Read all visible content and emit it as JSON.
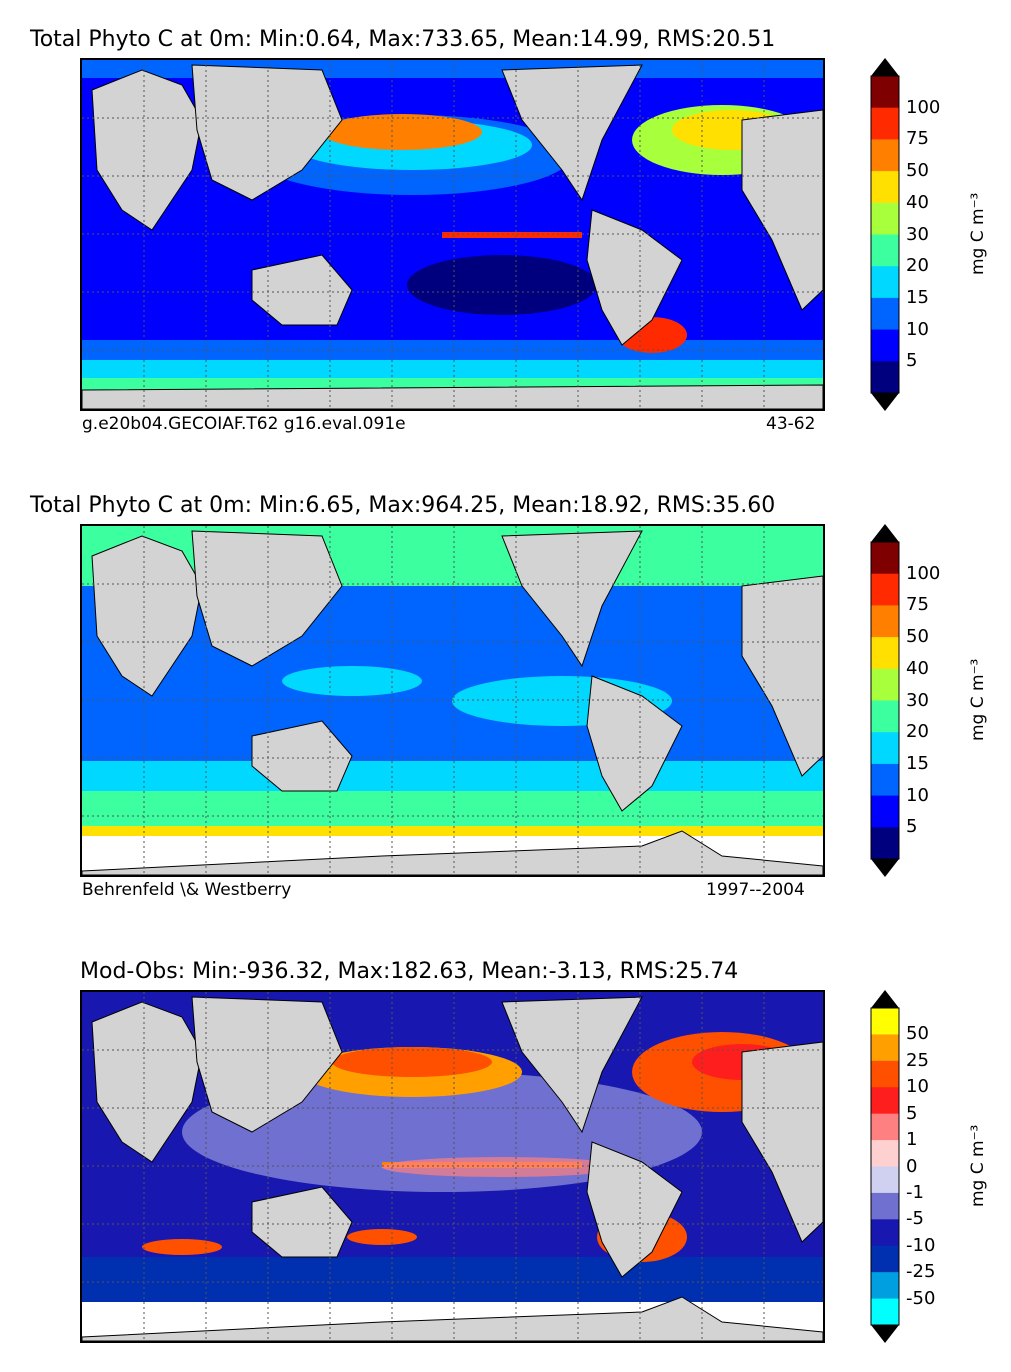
{
  "panels": [
    {
      "title": "Total Phyto C at 0m: Min:0.64, Max:733.65, Mean:14.99, RMS:20.51",
      "note_left": "g.e20b04.GECOIAF.T62 g16.eval.091e",
      "note_right": "43-62",
      "colorbar": {
        "unit": "mg C m⁻³",
        "tick_labels": [
          "100",
          "75",
          "50",
          "40",
          "30",
          "20",
          "15",
          "10",
          "5"
        ],
        "colors": [
          "#7f0000",
          "#ff2a00",
          "#ff8000",
          "#ffe000",
          "#a8ff3c",
          "#3cffa0",
          "#00d8ff",
          "#0064ff",
          "#0000ff",
          "#00007f"
        ],
        "extend_top_color": "#000000",
        "extend_bottom_color": "#000000"
      }
    },
    {
      "title": "Total Phyto C at 0m: Min:6.65, Max:964.25, Mean:18.92, RMS:35.60",
      "note_left": "Behrenfeld \\& Westberry",
      "note_right": "1997--2004",
      "colorbar": {
        "unit": "mg C m⁻³",
        "tick_labels": [
          "100",
          "75",
          "50",
          "40",
          "30",
          "20",
          "15",
          "10",
          "5"
        ],
        "colors": [
          "#7f0000",
          "#ff2a00",
          "#ff8000",
          "#ffe000",
          "#a8ff3c",
          "#3cffa0",
          "#00d8ff",
          "#0064ff",
          "#0000ff",
          "#00007f"
        ],
        "extend_top_color": "#000000",
        "extend_bottom_color": "#000000"
      }
    },
    {
      "title": "Mod-Obs: Min:-936.32, Max:182.63, Mean:-3.13, RMS:25.74",
      "note_left": "",
      "note_right": "",
      "colorbar": {
        "unit": "mg C m⁻³",
        "tick_labels": [
          "50",
          "25",
          "10",
          "5",
          "1",
          "0",
          "-1",
          "-5",
          "-10",
          "-25",
          "-50"
        ],
        "colors": [
          "#ffff00",
          "#ffa000",
          "#ff5000",
          "#ff1e1e",
          "#ff8080",
          "#ffd0d0",
          "#d0d0f0",
          "#7070d0",
          "#1818b0",
          "#0030b0",
          "#00a0e0",
          "#00ffff"
        ],
        "extend_top_color": "#000000",
        "extend_bottom_color": "#000000"
      }
    }
  ],
  "chart_data": [
    {
      "type": "heatmap",
      "title": "Total Phyto C at 0m: Min:0.64, Max:733.65, Mean:14.99, RMS:20.51",
      "field": "Total Phyto C at 0m (model)",
      "stats": {
        "min": 0.64,
        "max": 733.65,
        "mean": 14.99,
        "rms": 20.51
      },
      "colorbar_levels": [
        5,
        10,
        15,
        20,
        30,
        40,
        50,
        75,
        100
      ],
      "unit": "mg C m⁻³",
      "source": "g.e20b04.GECOIAF.T62 g16.eval.091e",
      "years": "43-62",
      "grid": true
    },
    {
      "type": "heatmap",
      "title": "Total Phyto C at 0m: Min:6.65, Max:964.25, Mean:18.92, RMS:35.60",
      "field": "Total Phyto C at 0m (observations)",
      "stats": {
        "min": 6.65,
        "max": 964.25,
        "mean": 18.92,
        "rms": 35.6
      },
      "colorbar_levels": [
        5,
        10,
        15,
        20,
        30,
        40,
        50,
        75,
        100
      ],
      "unit": "mg C m⁻³",
      "source": "Behrenfeld \\& Westberry",
      "years": "1997--2004",
      "grid": true
    },
    {
      "type": "heatmap",
      "title": "Mod-Obs: Min:-936.32, Max:182.63, Mean:-3.13, RMS:25.74",
      "field": "Model minus observations",
      "stats": {
        "min": -936.32,
        "max": 182.63,
        "mean": -3.13,
        "rms": 25.74
      },
      "colorbar_levels": [
        -50,
        -25,
        -10,
        -5,
        -1,
        0,
        1,
        5,
        10,
        25,
        50
      ],
      "unit": "mg C m⁻³",
      "grid": true
    }
  ]
}
